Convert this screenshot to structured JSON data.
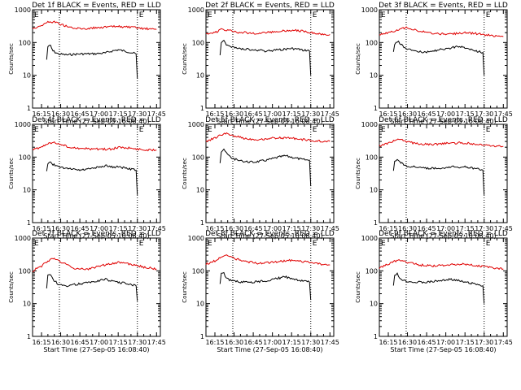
{
  "colors": {
    "events": "#000000",
    "lld": "#e00000",
    "axis": "#000000",
    "background": "#ffffff"
  },
  "shared": {
    "x_ticks": [
      "16:15",
      "16:30",
      "16:45",
      "17:00",
      "17:15",
      "17:30",
      "17:45"
    ],
    "x_tick_values_min": [
      0,
      15,
      30,
      45,
      60,
      75,
      90
    ],
    "x_range_min": [
      -7,
      93
    ],
    "y_ticks": [
      "1",
      "10",
      "100",
      "1000"
    ],
    "y_range": [
      1,
      1000
    ],
    "y_scale": "log",
    "ylabel": "Counts/sec",
    "xlabel": "Start Time (27-Sep-05 16:08:40)",
    "marker_label": "E"
  },
  "chart_data": [
    {
      "type": "line",
      "title": "Det 1f BLACK = Events, RED = LLD",
      "dotted_lines_min": [
        14,
        75
      ],
      "series": [
        {
          "name": "Events",
          "x": [
            4,
            5,
            7,
            9,
            13,
            20,
            30,
            40,
            50,
            55,
            60,
            68,
            74,
            75
          ],
          "values": [
            30,
            75,
            80,
            55,
            45,
            42,
            45,
            45,
            48,
            55,
            60,
            52,
            45,
            8
          ]
        },
        {
          "name": "LLD",
          "x": [
            -7,
            0,
            5,
            10,
            15,
            25,
            35,
            45,
            55,
            60,
            70,
            80,
            90
          ],
          "values": [
            270,
            330,
            420,
            430,
            360,
            270,
            265,
            290,
            300,
            310,
            290,
            265,
            250
          ]
        }
      ]
    },
    {
      "type": "line",
      "title": "Det 2f BLACK = Events, RED = LLD",
      "dotted_lines_min": [
        14,
        75
      ],
      "series": [
        {
          "name": "Events",
          "x": [
            4,
            5,
            7,
            9,
            13,
            20,
            30,
            40,
            50,
            55,
            60,
            68,
            74,
            75
          ],
          "values": [
            40,
            100,
            110,
            85,
            75,
            65,
            60,
            55,
            60,
            62,
            65,
            60,
            55,
            10
          ]
        },
        {
          "name": "LLD",
          "x": [
            -7,
            0,
            5,
            10,
            15,
            25,
            35,
            45,
            55,
            60,
            70,
            80,
            90
          ],
          "values": [
            190,
            200,
            250,
            240,
            210,
            200,
            190,
            210,
            230,
            240,
            220,
            185,
            175
          ]
        }
      ]
    },
    {
      "type": "line",
      "title": "Det 3f BLACK = Events, RED = LLD",
      "dotted_lines_min": [
        14,
        75
      ],
      "series": [
        {
          "name": "Events",
          "x": [
            4,
            5,
            7,
            9,
            13,
            20,
            30,
            40,
            50,
            55,
            60,
            68,
            74,
            75
          ],
          "values": [
            50,
            90,
            110,
            95,
            70,
            55,
            50,
            60,
            70,
            75,
            70,
            55,
            50,
            10
          ]
        },
        {
          "name": "LLD",
          "x": [
            -7,
            0,
            5,
            10,
            15,
            25,
            35,
            45,
            55,
            60,
            70,
            80,
            90
          ],
          "values": [
            170,
            200,
            230,
            260,
            290,
            220,
            185,
            180,
            190,
            200,
            185,
            165,
            150
          ]
        }
      ]
    },
    {
      "type": "line",
      "title": "Det 4f BLACK = Events, RED = LLD",
      "dotted_lines_min": [
        14,
        75
      ],
      "series": [
        {
          "name": "Events",
          "x": [
            4,
            5,
            7,
            9,
            13,
            20,
            30,
            40,
            50,
            55,
            60,
            68,
            74,
            75
          ],
          "values": [
            35,
            65,
            75,
            60,
            50,
            45,
            40,
            45,
            55,
            50,
            50,
            45,
            40,
            7
          ]
        },
        {
          "name": "LLD",
          "x": [
            -7,
            0,
            5,
            10,
            15,
            25,
            35,
            45,
            55,
            60,
            70,
            80,
            90
          ],
          "values": [
            170,
            200,
            260,
            290,
            240,
            190,
            180,
            175,
            175,
            200,
            185,
            165,
            165
          ]
        }
      ]
    },
    {
      "type": "line",
      "title": "Det 5f BLACK = Events, RED = LLD",
      "dotted_lines_min": [
        14,
        75
      ],
      "series": [
        {
          "name": "Events",
          "x": [
            4,
            5,
            7,
            9,
            13,
            20,
            30,
            40,
            50,
            55,
            60,
            68,
            74,
            75
          ],
          "values": [
            70,
            150,
            180,
            130,
            95,
            75,
            70,
            80,
            100,
            110,
            100,
            85,
            80,
            13
          ]
        },
        {
          "name": "LLD",
          "x": [
            -7,
            0,
            5,
            10,
            15,
            25,
            35,
            45,
            55,
            60,
            70,
            80,
            90
          ],
          "values": [
            300,
            380,
            480,
            520,
            440,
            360,
            340,
            380,
            390,
            380,
            340,
            310,
            300
          ]
        }
      ]
    },
    {
      "type": "line",
      "title": "Det 6f BLACK = Events, RED = LLD",
      "dotted_lines_min": [
        14,
        75
      ],
      "series": [
        {
          "name": "Events",
          "x": [
            4,
            5,
            7,
            9,
            13,
            20,
            30,
            40,
            50,
            55,
            60,
            68,
            74,
            75
          ],
          "values": [
            40,
            80,
            85,
            70,
            55,
            50,
            45,
            45,
            50,
            50,
            50,
            45,
            40,
            7
          ]
        },
        {
          "name": "LLD",
          "x": [
            -7,
            0,
            5,
            10,
            15,
            25,
            35,
            45,
            55,
            60,
            70,
            80,
            90
          ],
          "values": [
            220,
            260,
            320,
            350,
            290,
            250,
            240,
            260,
            270,
            270,
            250,
            225,
            210
          ]
        }
      ]
    },
    {
      "type": "line",
      "title": "Det 7f BLACK = Events, RED = LLD",
      "dotted_lines_min": [
        14,
        75
      ],
      "series": [
        {
          "name": "Events",
          "x": [
            4,
            5,
            7,
            9,
            13,
            20,
            30,
            40,
            50,
            55,
            60,
            68,
            74,
            75
          ],
          "values": [
            30,
            70,
            75,
            55,
            40,
            35,
            40,
            45,
            55,
            50,
            45,
            40,
            35,
            12
          ]
        },
        {
          "name": "LLD",
          "x": [
            -7,
            0,
            5,
            10,
            15,
            25,
            35,
            45,
            55,
            60,
            70,
            80,
            90
          ],
          "values": [
            100,
            140,
            200,
            250,
            190,
            120,
            110,
            140,
            170,
            180,
            160,
            130,
            115
          ]
        }
      ]
    },
    {
      "type": "line",
      "title": "Det 8f BLACK = Events, RED = LLD",
      "dotted_lines_min": [
        14,
        75
      ],
      "series": [
        {
          "name": "Events",
          "x": [
            4,
            5,
            7,
            9,
            13,
            20,
            30,
            40,
            50,
            55,
            60,
            68,
            74,
            75
          ],
          "values": [
            40,
            80,
            85,
            60,
            50,
            45,
            45,
            50,
            60,
            65,
            60,
            50,
            45,
            13
          ]
        },
        {
          "name": "LLD",
          "x": [
            -7,
            0,
            5,
            10,
            15,
            25,
            35,
            45,
            55,
            60,
            70,
            80,
            90
          ],
          "values": [
            160,
            200,
            260,
            300,
            240,
            190,
            170,
            180,
            200,
            210,
            190,
            165,
            150
          ]
        }
      ]
    },
    {
      "type": "line",
      "title": "Det 9f BLACK = Events, RED = LLD",
      "dotted_lines_min": [
        14,
        75
      ],
      "series": [
        {
          "name": "Events",
          "x": [
            4,
            5,
            7,
            9,
            13,
            20,
            30,
            40,
            50,
            55,
            60,
            68,
            74,
            75
          ],
          "values": [
            35,
            70,
            80,
            60,
            50,
            45,
            45,
            50,
            55,
            50,
            45,
            40,
            35,
            10
          ]
        },
        {
          "name": "LLD",
          "x": [
            -7,
            0,
            5,
            10,
            15,
            25,
            35,
            45,
            55,
            60,
            70,
            80,
            90
          ],
          "values": [
            120,
            160,
            200,
            210,
            180,
            150,
            140,
            150,
            160,
            160,
            145,
            125,
            115
          ]
        }
      ]
    }
  ]
}
